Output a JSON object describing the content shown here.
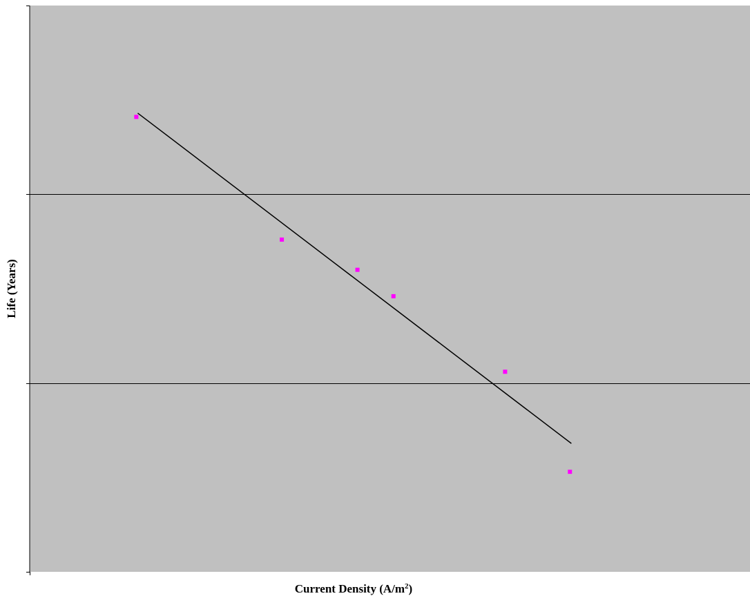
{
  "chart_data": {
    "type": "scatter",
    "xlabel": {
      "prefix": "Current Density (A/m",
      "superscript": "2",
      "suffix": ")"
    },
    "ylabel": "Life (Years)",
    "grid": {
      "horizontal_major": true,
      "vertical": false
    },
    "tick_labels_shown": false,
    "xlim": [
      0,
      100
    ],
    "ylim": [
      0,
      3
    ],
    "series": [
      {
        "marker": "square",
        "color": "#ff00ff",
        "x": [
          14.8,
          35.0,
          45.5,
          50.5,
          66.0,
          75.0
        ],
        "y": [
          2.41,
          1.76,
          1.6,
          1.46,
          1.06,
          0.53
        ]
      },
      {
        "type": "line",
        "color": "#000000",
        "x": [
          15.0,
          75.2
        ],
        "y": [
          2.43,
          0.68
        ]
      }
    ]
  },
  "colors": {
    "plot_background": "#c0c0c0",
    "gridline": "#000000",
    "marker": "#ff00ff",
    "trendline": "#000000"
  }
}
